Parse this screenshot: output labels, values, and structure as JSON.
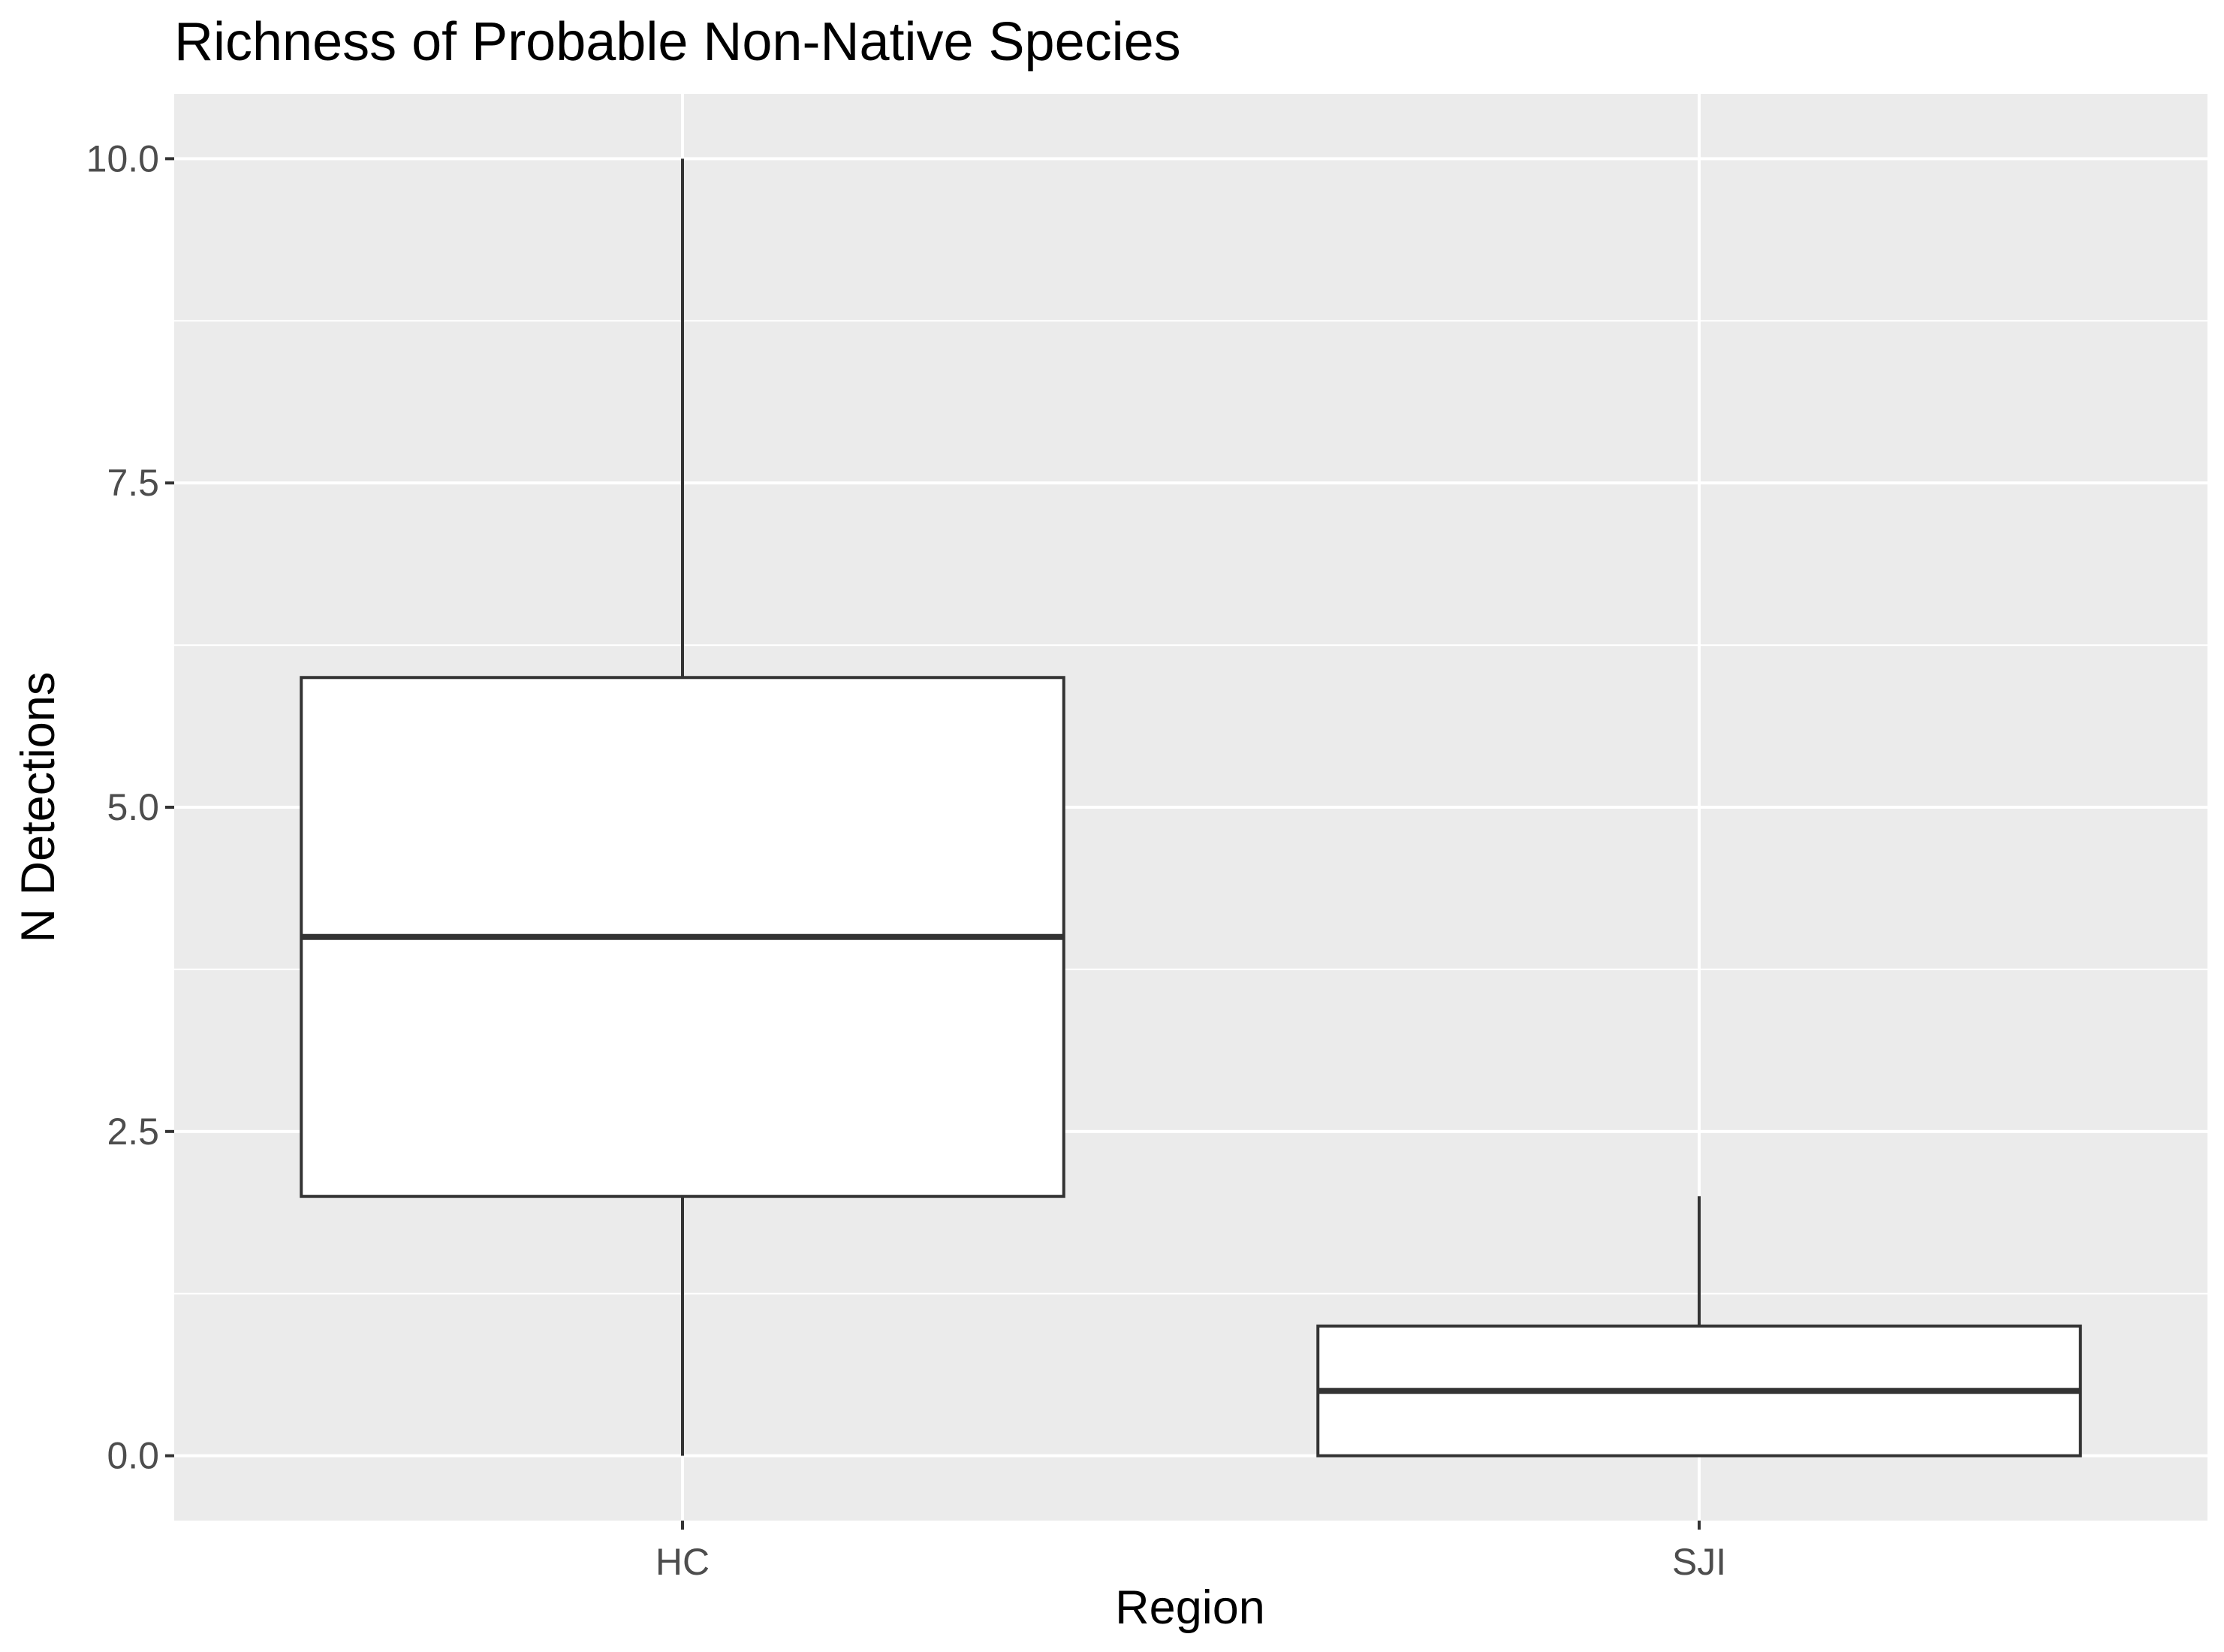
{
  "chart_data": {
    "type": "boxplot",
    "title": "Richness of Probable Non-Native Species",
    "xlabel": "Region",
    "ylabel": "N Detections",
    "categories": [
      "HC",
      "SJI"
    ],
    "boxes": [
      {
        "category": "HC",
        "min": 0,
        "q1": 2,
        "median": 4,
        "q3": 6,
        "max": 10
      },
      {
        "category": "SJI",
        "min": 0,
        "q1": 0,
        "median": 0.5,
        "q3": 1,
        "max": 2
      }
    ],
    "yticks": [
      0.0,
      2.5,
      5.0,
      7.5,
      10.0
    ],
    "ytick_labels": [
      "0.0",
      "2.5",
      "5.0",
      "7.5",
      "10.0"
    ],
    "ylim": [
      -0.5,
      10.5
    ],
    "grid": true,
    "colors": {
      "panel_background": "#ebebeb",
      "grid": "#ffffff",
      "box_fill": "#ffffff",
      "box_stroke": "#333333",
      "tick_label": "#4d4d4d",
      "tick_mark": "#333333"
    }
  }
}
